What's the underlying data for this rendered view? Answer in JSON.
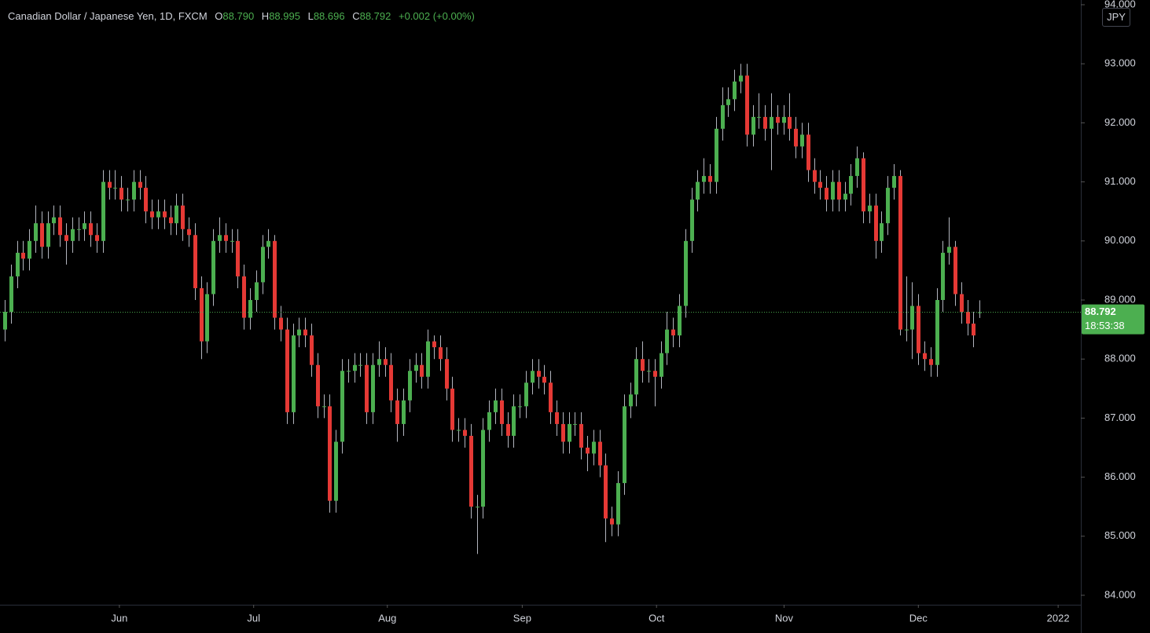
{
  "chart_data": {
    "type": "candlestick",
    "legend": {
      "symbol": "Canadian Dollar / Japanese Yen, 1D, FXCM",
      "items": [
        {
          "key": "O",
          "value": "88.790"
        },
        {
          "key": "H",
          "value": "88.995"
        },
        {
          "key": "L",
          "value": "88.696"
        },
        {
          "key": "C",
          "value": "88.792"
        }
      ],
      "change": "+0.002 (+0.00%)"
    },
    "currency": "JPY",
    "up_color": "#4caf50",
    "down_color": "#e53935",
    "wick_color": "#b2b5be",
    "ylim": [
      83.84,
      94.08
    ],
    "yticks": [
      {
        "value": 84,
        "label": "84.000"
      },
      {
        "value": 85,
        "label": "85.000"
      },
      {
        "value": 86,
        "label": "86.000"
      },
      {
        "value": 87,
        "label": "87.000"
      },
      {
        "value": 88,
        "label": "88.000"
      },
      {
        "value": 89,
        "label": "89.000"
      },
      {
        "value": 90,
        "label": "90.000"
      },
      {
        "value": 91,
        "label": "91.000"
      },
      {
        "value": 92,
        "label": "92.000"
      },
      {
        "value": 93,
        "label": "93.000"
      },
      {
        "value": 94,
        "label": "94.000"
      }
    ],
    "xlim": [
      -0.77,
      175.5
    ],
    "xticks": [
      {
        "value": 18.7,
        "label": "Jun"
      },
      {
        "value": 40.6,
        "label": "Jul"
      },
      {
        "value": 62.4,
        "label": "Aug"
      },
      {
        "value": 84.4,
        "label": "Sep"
      },
      {
        "value": 106.3,
        "label": "Oct"
      },
      {
        "value": 127.1,
        "label": "Nov"
      },
      {
        "value": 149.0,
        "label": "Dec"
      },
      {
        "value": 171.8,
        "label": "2022"
      }
    ],
    "last_price": {
      "value": 88.792,
      "label": "88.792",
      "countdown": "18:53:38"
    },
    "open": [
      88.5,
      88.8,
      89.4,
      89.8,
      89.7,
      90.0,
      90.3,
      89.9,
      90.3,
      90.4,
      90.1,
      90.0,
      90.2,
      90.2,
      90.3,
      90.1,
      90.0,
      91.0,
      90.9,
      90.9,
      90.7,
      90.7,
      91.0,
      90.9,
      90.5,
      90.4,
      90.5,
      90.4,
      90.3,
      90.6,
      90.2,
      90.1,
      89.2,
      88.3,
      89.1,
      90.0,
      90.1,
      90.0,
      90.0,
      89.4,
      88.7,
      89.0,
      89.3,
      89.9,
      90.0,
      88.7,
      88.5,
      87.1,
      88.4,
      88.5,
      88.4,
      87.9,
      87.2,
      87.2,
      85.6,
      86.6,
      87.8,
      87.8,
      87.9,
      87.9,
      87.1,
      87.9,
      88.0,
      87.9,
      87.3,
      86.9,
      87.3,
      87.8,
      87.9,
      87.7,
      88.3,
      88.2,
      88.0,
      87.5,
      86.8,
      86.8,
      86.7,
      85.5,
      85.5,
      86.8,
      87.1,
      87.3,
      86.9,
      86.7,
      87.2,
      87.2,
      87.6,
      87.8,
      87.7,
      87.6,
      87.1,
      86.9,
      86.6,
      86.9,
      86.9,
      86.5,
      86.4,
      86.6,
      86.2,
      85.3,
      85.2,
      85.9,
      87.2,
      87.4,
      88.0,
      87.8,
      87.8,
      87.7,
      88.1,
      88.5,
      88.4,
      88.9,
      90.0,
      90.7,
      91.0,
      91.1,
      91.0,
      91.9,
      92.3,
      92.4,
      92.7,
      92.8,
      91.8,
      92.1,
      92.1,
      91.9,
      92.1,
      92.0,
      92.1,
      91.9,
      91.6,
      91.8,
      91.2,
      91.0,
      90.9,
      90.7,
      91.0,
      90.7,
      90.8,
      91.1,
      91.4,
      90.5,
      90.6,
      90.0,
      90.3,
      90.9,
      91.1,
      88.5,
      88.5,
      88.9,
      88.1,
      88.0,
      87.9,
      89.0,
      89.8,
      89.9,
      89.1,
      88.8,
      88.6,
      88.79
    ],
    "high": [
      89.0,
      89.6,
      90.0,
      90.0,
      90.2,
      90.6,
      90.5,
      90.5,
      90.6,
      90.6,
      90.3,
      90.4,
      90.4,
      90.5,
      90.5,
      90.3,
      91.2,
      91.2,
      91.2,
      91.1,
      90.9,
      91.2,
      91.2,
      91.1,
      90.7,
      90.7,
      90.7,
      90.6,
      90.8,
      90.8,
      90.4,
      90.3,
      89.4,
      89.3,
      90.2,
      90.4,
      90.3,
      90.2,
      90.2,
      89.6,
      89.2,
      89.5,
      90.1,
      90.2,
      90.1,
      88.9,
      88.7,
      88.6,
      88.7,
      88.7,
      88.6,
      88.1,
      87.4,
      87.4,
      86.8,
      88.0,
      88.0,
      88.1,
      88.1,
      88.1,
      88.1,
      88.3,
      88.2,
      88.1,
      87.5,
      87.5,
      88.0,
      88.1,
      88.1,
      88.5,
      88.4,
      88.4,
      88.2,
      87.7,
      87.0,
      87.0,
      86.9,
      85.7,
      87.0,
      87.3,
      87.5,
      87.5,
      87.1,
      87.4,
      87.4,
      87.8,
      88.0,
      88.0,
      87.9,
      87.8,
      87.3,
      87.1,
      87.1,
      87.1,
      87.1,
      86.7,
      86.8,
      86.8,
      86.4,
      85.5,
      86.1,
      87.4,
      87.6,
      88.2,
      88.3,
      88.0,
      88.0,
      88.3,
      88.8,
      88.7,
      89.1,
      90.2,
      90.9,
      91.2,
      91.4,
      91.3,
      92.1,
      92.6,
      92.6,
      92.9,
      93.0,
      93.0,
      92.3,
      92.5,
      92.3,
      92.5,
      92.3,
      92.3,
      92.5,
      92.1,
      92.0,
      92.0,
      91.4,
      91.2,
      91.1,
      91.2,
      91.2,
      91.0,
      91.3,
      91.6,
      91.5,
      90.8,
      90.8,
      90.5,
      91.1,
      91.3,
      91.2,
      89.4,
      89.3,
      89.1,
      88.3,
      88.2,
      89.2,
      90.0,
      90.4,
      90.0,
      89.3,
      89.0,
      88.8,
      88.995
    ],
    "low": [
      88.3,
      88.6,
      89.2,
      89.5,
      89.5,
      89.8,
      89.7,
      89.7,
      90.1,
      89.9,
      89.6,
      89.8,
      90.0,
      90.0,
      89.9,
      89.8,
      89.8,
      90.7,
      90.7,
      90.5,
      90.5,
      90.5,
      90.7,
      90.3,
      90.2,
      90.2,
      90.2,
      90.1,
      90.1,
      90.0,
      89.9,
      89.0,
      88.0,
      88.1,
      88.9,
      89.8,
      89.8,
      89.8,
      89.2,
      88.5,
      88.5,
      88.8,
      89.1,
      89.7,
      88.5,
      88.3,
      86.9,
      86.9,
      88.2,
      88.2,
      87.7,
      87.0,
      87.0,
      85.4,
      85.4,
      86.4,
      87.6,
      87.6,
      87.7,
      86.9,
      86.9,
      87.7,
      87.7,
      87.1,
      86.6,
      86.7,
      87.1,
      87.6,
      87.5,
      87.5,
      88.0,
      87.8,
      87.3,
      86.6,
      86.6,
      86.5,
      85.3,
      84.7,
      85.3,
      86.6,
      86.9,
      86.7,
      86.5,
      86.5,
      87.0,
      87.0,
      87.4,
      87.5,
      87.4,
      86.9,
      86.7,
      86.4,
      86.4,
      86.7,
      86.3,
      86.1,
      86.2,
      86.0,
      84.9,
      85.0,
      85.0,
      85.7,
      87.0,
      87.2,
      87.6,
      87.6,
      87.2,
      87.5,
      87.9,
      88.2,
      88.2,
      88.7,
      89.8,
      90.5,
      90.8,
      90.8,
      90.8,
      91.7,
      92.1,
      92.2,
      92.5,
      91.6,
      91.6,
      91.9,
      91.7,
      91.2,
      91.8,
      91.8,
      91.7,
      91.4,
      91.4,
      91.0,
      90.8,
      90.7,
      90.5,
      90.5,
      90.5,
      90.5,
      90.6,
      90.9,
      90.3,
      90.3,
      89.7,
      89.8,
      90.1,
      90.7,
      88.4,
      88.3,
      88.0,
      87.9,
      87.8,
      87.7,
      87.7,
      88.8,
      89.6,
      88.9,
      88.6,
      88.4,
      88.2,
      88.696
    ],
    "close": [
      88.8,
      89.4,
      89.8,
      89.7,
      90.0,
      90.3,
      89.9,
      90.3,
      90.4,
      90.1,
      90.0,
      90.2,
      90.2,
      90.3,
      90.1,
      90.0,
      91.0,
      90.9,
      90.9,
      90.7,
      90.7,
      91.0,
      90.9,
      90.5,
      90.4,
      90.5,
      90.4,
      90.3,
      90.6,
      90.2,
      90.1,
      89.2,
      88.3,
      89.1,
      90.0,
      90.1,
      90.0,
      90.0,
      89.4,
      88.7,
      89.0,
      89.3,
      89.9,
      90.0,
      88.7,
      88.5,
      87.1,
      88.4,
      88.5,
      88.4,
      87.9,
      87.2,
      87.2,
      85.6,
      86.6,
      87.8,
      87.8,
      87.9,
      87.9,
      87.1,
      87.9,
      88.0,
      87.9,
      87.3,
      86.9,
      87.3,
      87.8,
      87.9,
      87.7,
      88.3,
      88.2,
      88.0,
      87.5,
      86.8,
      86.8,
      86.7,
      85.5,
      85.5,
      86.8,
      87.1,
      87.3,
      86.9,
      86.7,
      87.2,
      87.2,
      87.6,
      87.8,
      87.7,
      87.6,
      87.1,
      86.9,
      86.6,
      86.9,
      86.9,
      86.5,
      86.4,
      86.6,
      86.2,
      85.3,
      85.2,
      85.9,
      87.2,
      87.4,
      88.0,
      87.8,
      87.8,
      87.7,
      88.1,
      88.5,
      88.4,
      88.9,
      90.0,
      90.7,
      91.0,
      91.1,
      91.0,
      91.9,
      92.3,
      92.4,
      92.7,
      92.8,
      91.8,
      92.1,
      92.1,
      91.9,
      92.1,
      92.0,
      92.1,
      91.9,
      91.6,
      91.8,
      91.2,
      91.0,
      90.9,
      90.7,
      91.0,
      90.7,
      90.8,
      91.1,
      91.4,
      90.5,
      90.6,
      90.0,
      90.3,
      90.9,
      91.1,
      88.5,
      88.5,
      88.9,
      88.1,
      88.0,
      87.9,
      89.0,
      89.8,
      89.9,
      89.1,
      88.8,
      88.6,
      88.4,
      88.792
    ]
  }
}
